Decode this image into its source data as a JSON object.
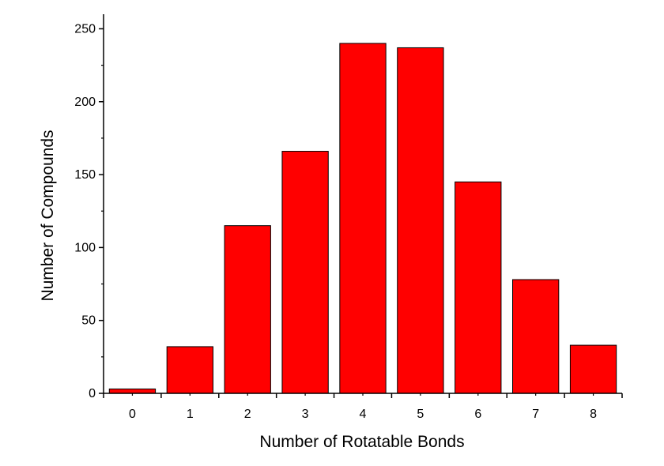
{
  "chart_data": {
    "type": "bar",
    "title": "",
    "xlabel": "Number of Rotatable Bonds",
    "ylabel": "Number of Compounds",
    "categories": [
      "0",
      "1",
      "2",
      "3",
      "4",
      "5",
      "6",
      "7",
      "8"
    ],
    "values": [
      3,
      32,
      115,
      166,
      240,
      237,
      145,
      78,
      33
    ],
    "ylim": [
      0,
      260
    ],
    "yticks": [
      0,
      50,
      100,
      150,
      200,
      250
    ],
    "ytick_labels": [
      "0",
      "50",
      "100",
      "150",
      "200",
      "250"
    ],
    "grid": false,
    "legend": "none",
    "bar_color": "#ff0000",
    "edge_color": "#000000"
  }
}
